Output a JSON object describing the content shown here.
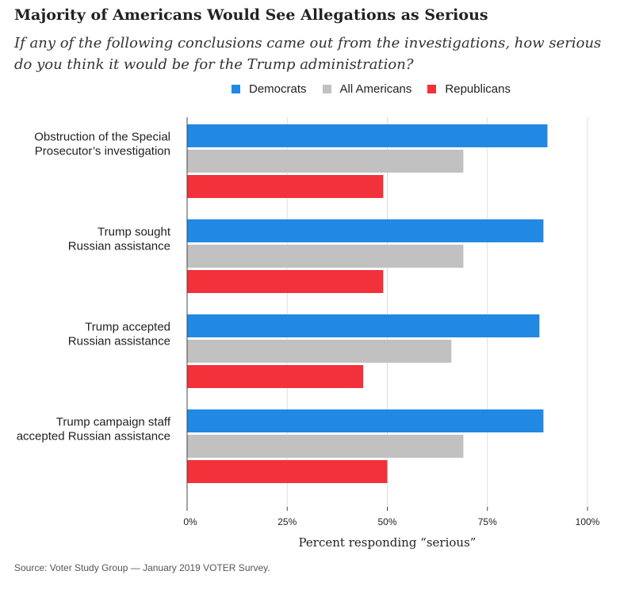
{
  "title": "Majority of Americans Would See Allegations as Serious",
  "subtitle": "If any of the following conclusions came out from the investigations, how serious do you think it would be for the Trump administration?",
  "source": "Source: Voter Study Group — January 2019 VOTER Survey.",
  "colors": {
    "democrats": "#2189e3",
    "all_americans": "#c1c1c1",
    "republicans": "#f2313b",
    "grid": "#dddddd"
  },
  "chart_data": {
    "type": "bar",
    "orientation": "horizontal",
    "categories": [
      [
        "Obstruction of the Special",
        "Prosecutor’s investigation"
      ],
      [
        "Trump sought",
        "Russian assistance"
      ],
      [
        "Trump accepted",
        "Russian assistance"
      ],
      [
        "Trump campaign staff",
        "accepted Russian assistance"
      ]
    ],
    "series": [
      {
        "name": "Democrats",
        "color": "#2189e3",
        "values": [
          90,
          89,
          88,
          89
        ]
      },
      {
        "name": "All Americans",
        "color": "#c1c1c1",
        "values": [
          69,
          69,
          66,
          69
        ]
      },
      {
        "name": "Republicans",
        "color": "#f2313b",
        "values": [
          49,
          49,
          44,
          50
        ]
      }
    ],
    "xlabel": "Percent responding “serious”",
    "ylabel": "",
    "xlim": [
      0,
      100
    ],
    "xticks": [
      0,
      25,
      50,
      75,
      100
    ],
    "xtick_labels": [
      "0%",
      "25%",
      "50%",
      "75%",
      "100%"
    ],
    "grid": true,
    "legend_position": "top"
  }
}
